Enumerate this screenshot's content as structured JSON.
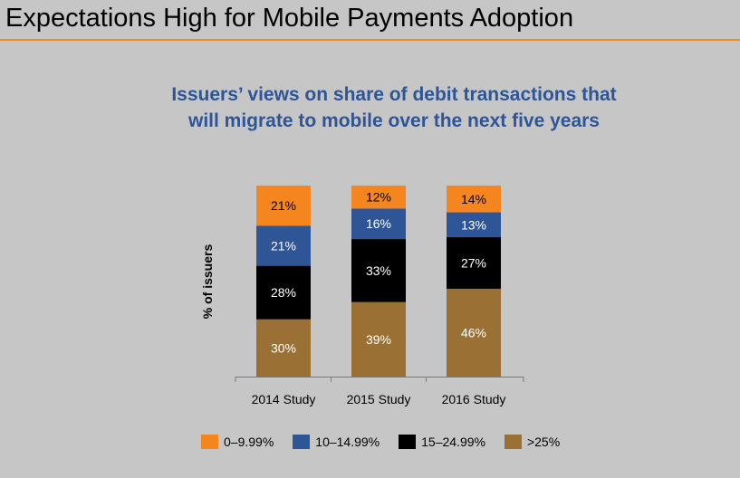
{
  "slide": {
    "title": "Expectations High for Mobile Payments Adoption"
  },
  "chart_data": {
    "type": "bar",
    "stacked": true,
    "title_lines": [
      "Issuers’ views on share of debit transactions that",
      "will migrate to mobile over the next five years"
    ],
    "ylabel": "% of issuers",
    "xlabel": "",
    "categories": [
      "2014 Study",
      "2015 Study",
      "2016 Study"
    ],
    "series": [
      {
        "name": ">25%",
        "color": "#9b7035",
        "values": [
          30,
          39,
          46
        ],
        "labels": [
          "30%",
          "39%",
          "46%"
        ]
      },
      {
        "name": "15–24.99%",
        "color": "#000000",
        "values": [
          28,
          33,
          27
        ],
        "labels": [
          "28%",
          "33%",
          "27%"
        ]
      },
      {
        "name": "10–14.99%",
        "color": "#2e5596",
        "values": [
          21,
          16,
          13
        ],
        "labels": [
          "21%",
          "16%",
          "13%"
        ]
      },
      {
        "name": "0–9.99%",
        "color": "#f5861f",
        "values": [
          21,
          12,
          14
        ],
        "labels": [
          "21%",
          "12%",
          "14%"
        ]
      }
    ],
    "legend_order": [
      "0–9.99%",
      "10–14.99%",
      "15–24.99%",
      ">25%"
    ],
    "ylim": [
      0,
      100
    ],
    "grid": false
  }
}
